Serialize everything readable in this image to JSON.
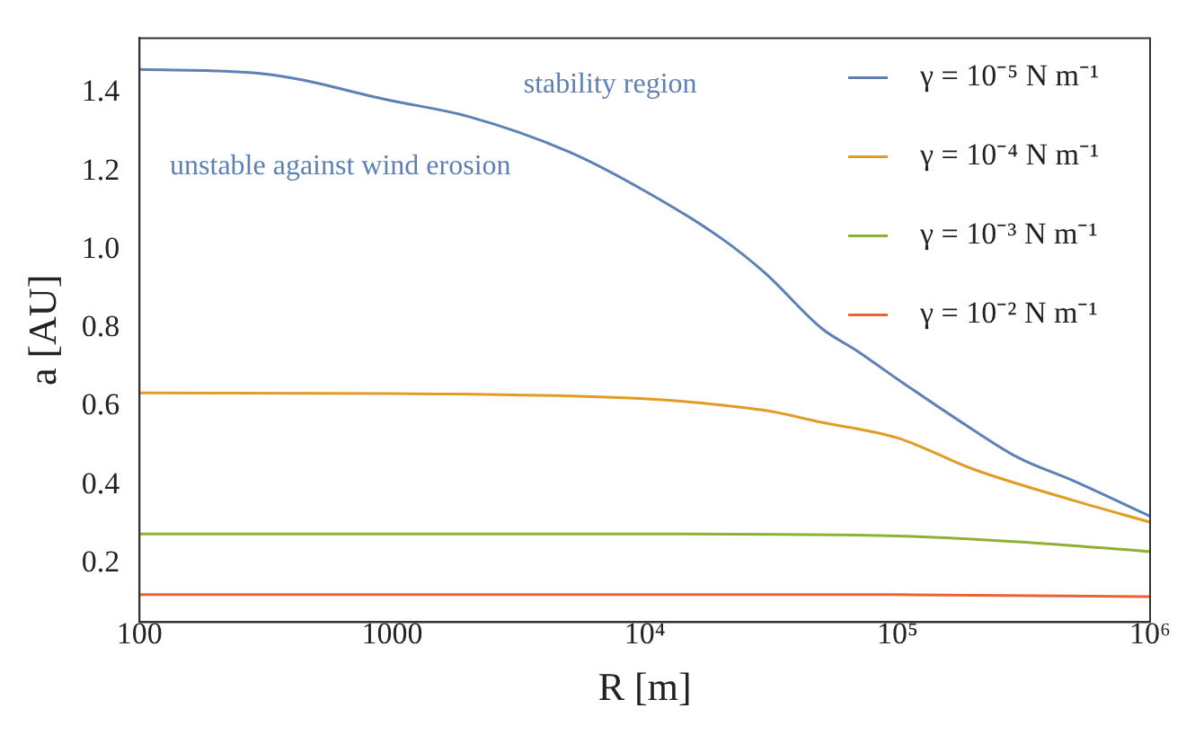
{
  "chart_data": {
    "type": "line",
    "xlabel": "R [m]",
    "ylabel": "a [AU]",
    "annotations": [
      "stability region",
      "unstable against wind erosion"
    ],
    "log": "x",
    "grid": false,
    "legend": "top right",
    "marker": "none",
    "line_style": "solid",
    "xlim": [
      100,
      1000000
    ],
    "xticks": [
      100,
      1000,
      {
        "value": 10000,
        "label": "10⁴"
      },
      {
        "value": 100000,
        "label": "10⁵"
      },
      {
        "value": 1000000,
        "label": "10⁶"
      }
    ],
    "ylim": [
      0.05,
      1.54
    ],
    "yticks": [
      0.2,
      0.4,
      0.6,
      0.8,
      {
        "value": 1,
        "label": "1.0"
      },
      1.2,
      1.4
    ],
    "series": [
      {
        "name": "γ = 10⁻⁵ N m⁻¹",
        "color": "#5e81b5",
        "x": [
          100,
          300,
          1000,
          2000,
          5000,
          10000,
          20000,
          30000,
          50000,
          70000,
          100000,
          200000,
          300000,
          500000,
          1000000
        ],
        "values": [
          1.46,
          1.45,
          1.38,
          1.34,
          1.25,
          1.15,
          1.03,
          0.94,
          0.8,
          0.74,
          0.67,
          0.54,
          0.47,
          0.41,
          0.32
        ]
      },
      {
        "name": "γ = 10⁻⁴ N m⁻¹",
        "color": "#e19c24",
        "x": [
          100,
          1000,
          3000,
          10000,
          30000,
          50000,
          100000,
          200000,
          500000,
          1000000
        ],
        "values": [
          0.635,
          0.633,
          0.63,
          0.62,
          0.59,
          0.56,
          0.52,
          0.44,
          0.36,
          0.305
        ]
      },
      {
        "name": "γ = 10⁻³ N m⁻¹",
        "color": "#8fb032",
        "x": [
          100,
          10000,
          100000,
          300000,
          1000000
        ],
        "values": [
          0.275,
          0.275,
          0.27,
          0.255,
          0.23
        ]
      },
      {
        "name": "γ = 10⁻² N m⁻¹",
        "color": "#eb6235",
        "x": [
          100,
          100000,
          1000000
        ],
        "values": [
          0.12,
          0.12,
          0.115
        ]
      }
    ]
  }
}
